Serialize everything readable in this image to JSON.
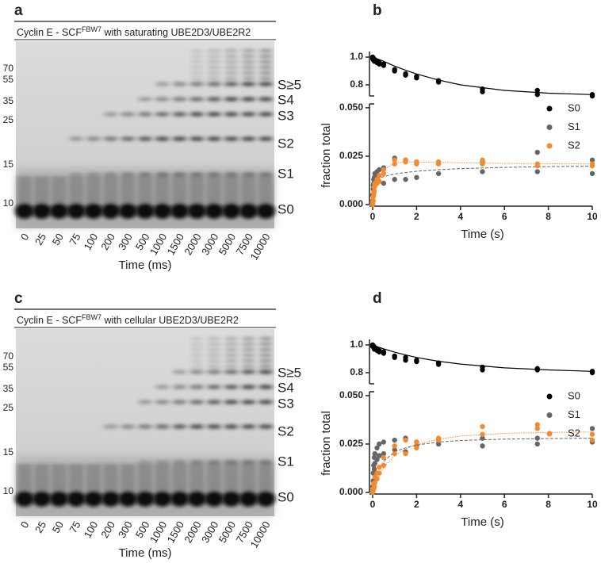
{
  "gels": [
    {
      "letter": "a",
      "title": {
        "pre": "Cyclin E - SCF",
        "sup": "FBW7",
        "post": " with saturating UBE2D3/UBE2R2"
      },
      "markers": [
        "70",
        "55",
        "35",
        "25",
        "15",
        "10"
      ],
      "bands": [
        "S≥5",
        "S4",
        "S3",
        "S2",
        "S1",
        "S0"
      ],
      "lanes": [
        "0",
        "25",
        "50",
        "75",
        "100",
        "200",
        "300",
        "500",
        "1000",
        "1500",
        "2000",
        "3000",
        "5000",
        "7500",
        "10000"
      ],
      "xlabel": "Time (ms)"
    },
    {
      "letter": "c",
      "title": {
        "pre": "Cyclin E - SCF",
        "sup": "FBW7",
        "post": " with cellular UBE2D3/UBE2R2"
      },
      "markers": [
        "70",
        "55",
        "35",
        "25",
        "15",
        "10"
      ],
      "bands": [
        "S≥5",
        "S4",
        "S3",
        "S2",
        "S1",
        "S0"
      ],
      "lanes": [
        "0",
        "25",
        "50",
        "75",
        "100",
        "200",
        "300",
        "500",
        "1000",
        "1500",
        "2000",
        "3000",
        "5000",
        "7500",
        "10000"
      ],
      "xlabel": "Time (ms)"
    }
  ],
  "chart_data": [
    {
      "type": "scatter",
      "panel": "b",
      "xlabel": "Time (s)",
      "ylabel": "fraction total",
      "x": [
        0,
        0,
        0.025,
        0.025,
        0.05,
        0.05,
        0.075,
        0.075,
        0.1,
        0.1,
        0.2,
        0.2,
        0.3,
        0.3,
        0.5,
        0.5,
        1,
        1,
        1.5,
        1.5,
        2,
        2,
        3,
        3,
        5,
        5,
        7.5,
        7.5,
        10,
        10
      ],
      "xlim": [
        0,
        10
      ],
      "xticks": [
        0,
        2,
        4,
        6,
        8,
        10
      ],
      "ylim": [
        0,
        0.052
      ],
      "yticks": [
        {
          "value": 0,
          "label": "0.000"
        },
        {
          "value": 0.025,
          "label": "0.025"
        },
        {
          "value": 0.05,
          "label": "0.050"
        }
      ],
      "y2lim": [
        0.72,
        1.04
      ],
      "y2ticks": [
        0.8,
        {
          "value": 1.0,
          "label": "1.0"
        }
      ],
      "series": [
        {
          "name": "S0",
          "color": "#000000",
          "axis": "y2",
          "fit_dash": "solid",
          "values": [
            1.0,
            0.99,
            0.99,
            0.98,
            0.98,
            0.99,
            0.98,
            0.97,
            0.97,
            0.98,
            0.97,
            0.96,
            0.96,
            0.95,
            0.95,
            0.94,
            0.91,
            0.9,
            0.88,
            0.87,
            0.86,
            0.85,
            0.83,
            0.82,
            0.77,
            0.75,
            0.76,
            0.73,
            0.73,
            0.72
          ],
          "fit": {
            "x": [
              0,
              0.25,
              0.5,
              1,
              1.5,
              2,
              3,
              4,
              6,
              8,
              10
            ],
            "values": [
              1.0,
              0.985,
              0.97,
              0.935,
              0.905,
              0.878,
              0.835,
              0.8,
              0.76,
              0.74,
              0.73
            ]
          }
        },
        {
          "name": "S1",
          "color": "#666666",
          "fit_dash": "dashed",
          "values": [
            0.005,
            0.002,
            0.01,
            0.008,
            0.013,
            0.011,
            0.014,
            0.012,
            0.016,
            0.013,
            0.017,
            0.015,
            0.018,
            0.012,
            0.019,
            0.011,
            0.024,
            0.013,
            0.023,
            0.013,
            0.022,
            0.014,
            0.022,
            0.016,
            0.022,
            0.017,
            0.027,
            0.017,
            0.023,
            0.016
          ],
          "fit": {
            "x": [
              0,
              0.25,
              0.5,
              1,
              1.5,
              2,
              3,
              4,
              6,
              8,
              10
            ],
            "values": [
              0.012,
              0.0135,
              0.0145,
              0.0158,
              0.0166,
              0.0172,
              0.018,
              0.0186,
              0.0192,
              0.0196,
              0.0198
            ]
          }
        },
        {
          "name": "S2",
          "color": "#f28a30",
          "fit_dash": "dotted",
          "values": [
            0.001,
            0,
            0.004,
            0.002,
            0.006,
            0.005,
            0.009,
            0.007,
            0.011,
            0.01,
            0.013,
            0.011,
            0.015,
            0.012,
            0.018,
            0.016,
            0.023,
            0.021,
            0.023,
            0.022,
            0.022,
            0.021,
            0.022,
            0.021,
            0.023,
            0.021,
            0.021,
            0.02,
            0.021,
            0.02
          ],
          "fit": {
            "x": [
              0,
              0.25,
              0.5,
              1,
              1.5,
              2,
              3,
              4,
              6,
              8,
              10
            ],
            "values": [
              0,
              0.012,
              0.018,
              0.0215,
              0.022,
              0.022,
              0.0218,
              0.0216,
              0.0213,
              0.0211,
              0.021
            ]
          }
        }
      ]
    },
    {
      "type": "scatter",
      "panel": "d",
      "xlabel": "Time (s)",
      "ylabel": "fraction total",
      "x": [
        0,
        0,
        0.025,
        0.025,
        0.05,
        0.05,
        0.075,
        0.075,
        0.1,
        0.1,
        0.2,
        0.2,
        0.3,
        0.3,
        0.5,
        0.5,
        1,
        1,
        1.5,
        1.5,
        2,
        2,
        3,
        3,
        5,
        5,
        7.5,
        7.5,
        10,
        10
      ],
      "xlim": [
        0,
        10
      ],
      "xticks": [
        0,
        2,
        4,
        6,
        8,
        10
      ],
      "ylim": [
        0,
        0.052
      ],
      "yticks": [
        {
          "value": 0,
          "label": "0.000"
        },
        {
          "value": 0.025,
          "label": "0.025"
        },
        {
          "value": 0.05,
          "label": "0.050"
        }
      ],
      "y2lim": [
        0.72,
        1.04
      ],
      "y2ticks": [
        0.8,
        {
          "value": 1.0,
          "label": "1.0"
        }
      ],
      "series": [
        {
          "name": "S0",
          "color": "#000000",
          "axis": "y2",
          "fit_dash": "solid",
          "values": [
            1.0,
            0.99,
            0.99,
            0.99,
            0.99,
            0.98,
            0.98,
            0.97,
            0.98,
            0.97,
            0.97,
            0.96,
            0.96,
            0.95,
            0.95,
            0.94,
            0.92,
            0.91,
            0.91,
            0.89,
            0.89,
            0.88,
            0.87,
            0.86,
            0.84,
            0.82,
            0.83,
            0.82,
            0.81,
            0.8
          ],
          "fit": {
            "x": [
              0,
              0.25,
              0.5,
              1,
              1.5,
              2,
              3,
              4,
              6,
              8,
              10
            ],
            "values": [
              1.0,
              0.985,
              0.972,
              0.948,
              0.928,
              0.91,
              0.882,
              0.862,
              0.835,
              0.82,
              0.81
            ]
          }
        },
        {
          "name": "S1",
          "color": "#666666",
          "fit_dash": "dashed",
          "values": [
            0.003,
            0.001,
            0.01,
            0.006,
            0.014,
            0.01,
            0.018,
            0.012,
            0.02,
            0.015,
            0.023,
            0.017,
            0.025,
            0.019,
            0.026,
            0.02,
            0.027,
            0.022,
            0.028,
            0.021,
            0.026,
            0.024,
            0.027,
            0.025,
            0.028,
            0.024,
            0.028,
            0.025,
            0.033,
            0.026
          ],
          "fit": {
            "x": [
              0,
              0.25,
              0.5,
              1,
              1.5,
              2,
              3,
              4,
              6,
              8,
              10
            ],
            "values": [
              0,
              0.011,
              0.016,
              0.021,
              0.023,
              0.0245,
              0.026,
              0.0268,
              0.0275,
              0.0278,
              0.028
            ]
          }
        },
        {
          "name": "S2",
          "color": "#f28a30",
          "fit_dash": "dotted",
          "values": [
            0.001,
            0,
            0.002,
            0.001,
            0.004,
            0.002,
            0.005,
            0.003,
            0.008,
            0.005,
            0.01,
            0.007,
            0.013,
            0.01,
            0.018,
            0.014,
            0.024,
            0.02,
            0.027,
            0.02,
            0.026,
            0.023,
            0.028,
            0.027,
            0.034,
            0.03,
            0.035,
            0.033,
            0.03,
            0.027
          ],
          "fit": {
            "x": [
              0,
              0.25,
              0.5,
              1,
              1.5,
              2,
              3,
              4,
              6,
              8,
              10
            ],
            "values": [
              0,
              0.008,
              0.013,
              0.019,
              0.0225,
              0.0248,
              0.0275,
              0.0291,
              0.0305,
              0.031,
              0.0312
            ]
          }
        }
      ]
    }
  ]
}
